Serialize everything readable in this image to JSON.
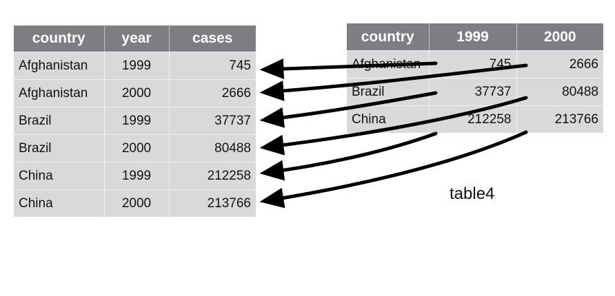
{
  "long_table": {
    "headers": [
      "country",
      "year",
      "cases"
    ],
    "rows": [
      [
        "Afghanistan",
        "1999",
        "745"
      ],
      [
        "Afghanistan",
        "2000",
        "2666"
      ],
      [
        "Brazil",
        "1999",
        "37737"
      ],
      [
        "Brazil",
        "2000",
        "80488"
      ],
      [
        "China",
        "1999",
        "212258"
      ],
      [
        "China",
        "2000",
        "213766"
      ]
    ]
  },
  "wide_table": {
    "headers": [
      "country",
      "1999",
      "2000"
    ],
    "rows": [
      [
        "Afghanistan",
        "745",
        "2666"
      ],
      [
        "Brazil",
        "37737",
        "80488"
      ],
      [
        "China",
        "212258",
        "213766"
      ]
    ]
  },
  "caption": "table4",
  "colors": {
    "header_bg": "#7e7e82",
    "cell_bg": "#d9d9dc",
    "arrow": "#000000"
  }
}
